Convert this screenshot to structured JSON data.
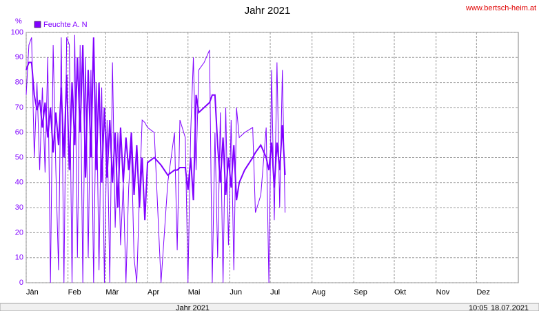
{
  "chart_data": {
    "type": "line",
    "title": "Jahr 2021",
    "watermark": "www.bertsch-heim.at",
    "y_unit": "%",
    "x": [
      0,
      2,
      4,
      6,
      8,
      10,
      12,
      14,
      16,
      18,
      20,
      22,
      24,
      26,
      28,
      30,
      32,
      34,
      36,
      38,
      40,
      42,
      44,
      46,
      48,
      50,
      52,
      54,
      56,
      58,
      60,
      62,
      64,
      66,
      68,
      70,
      72,
      74,
      76,
      78,
      80,
      82,
      84,
      86,
      88,
      90,
      95,
      100,
      105,
      110,
      112,
      114,
      118,
      120,
      122,
      124,
      126,
      128,
      132,
      136,
      138,
      140,
      142,
      144,
      146,
      148,
      150,
      152,
      154,
      156,
      158,
      162,
      168,
      170,
      174,
      178,
      180,
      182,
      184,
      186,
      188,
      190,
      192
    ],
    "series": [
      {
        "color": "#8000ff",
        "values": [
          75,
          95,
          98,
          50,
          80,
          45,
          78,
          44,
          90,
          0,
          95,
          45,
          5,
          98,
          0,
          98,
          95,
          0,
          99,
          10,
          95,
          0,
          90,
          10,
          85,
          0,
          80,
          5,
          78,
          0,
          65,
          0,
          88,
          22,
          60,
          15,
          40,
          0,
          38,
          55,
          10,
          0,
          35,
          65,
          64,
          62,
          60,
          0,
          40,
          60,
          13,
          65,
          58,
          0,
          60,
          90,
          45,
          85,
          88,
          93,
          0,
          60,
          10,
          68,
          0,
          70,
          15,
          65,
          5,
          70,
          58,
          60,
          62,
          28,
          35,
          62,
          0,
          85,
          25,
          88,
          30,
          85,
          28
        ]
      },
      {
        "name": "Feuchte A. N",
        "color": "#8000ff",
        "values": [
          85,
          88,
          88,
          75,
          69,
          73,
          62,
          72,
          58,
          70,
          52,
          68,
          55,
          78,
          50,
          83,
          45,
          80,
          55,
          90,
          60,
          95,
          42,
          85,
          50,
          98,
          45,
          80,
          40,
          70,
          42,
          65,
          40,
          60,
          30,
          62,
          40,
          58,
          45,
          60,
          35,
          55,
          30,
          50,
          25,
          48,
          50,
          47,
          43,
          45,
          45,
          46,
          46,
          37,
          50,
          33,
          75,
          68,
          70,
          72,
          75,
          75,
          55,
          40,
          58,
          35,
          50,
          38,
          55,
          33,
          40,
          45,
          50,
          52,
          55,
          50,
          45,
          56,
          38,
          56,
          45,
          63,
          43
        ]
      }
    ],
    "xlim": [
      0,
      365
    ],
    "xticks": [
      {
        "value": 0,
        "label": "Jän"
      },
      {
        "value": 31,
        "label": "Feb"
      },
      {
        "value": 59,
        "label": "Mär"
      },
      {
        "value": 90,
        "label": "Apr"
      },
      {
        "value": 120,
        "label": "Mai"
      },
      {
        "value": 151,
        "label": "Jun"
      },
      {
        "value": 181,
        "label": "Jul"
      },
      {
        "value": 212,
        "label": "Aug"
      },
      {
        "value": 243,
        "label": "Sep"
      },
      {
        "value": 273,
        "label": "Okt"
      },
      {
        "value": 304,
        "label": "Nov"
      },
      {
        "value": 334,
        "label": "Dez"
      }
    ],
    "ylim": [
      0,
      100
    ],
    "yticks": [
      0,
      10,
      20,
      30,
      40,
      50,
      60,
      70,
      80,
      90,
      100
    ],
    "grid": true
  },
  "status_bar": {
    "cells": [
      "Jahr 2021",
      "10:05",
      "18.07.2021"
    ]
  }
}
